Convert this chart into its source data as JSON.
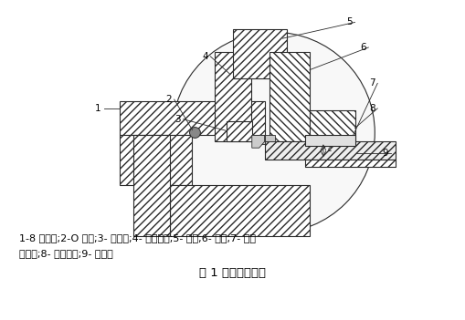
{
  "title": "图 1 辊箱密封结构",
  "caption_line1": "1-8 字面板;2-O 型圈;3- 密封板;4- 外抛油环;5- 辊环;6- 锥套;7- 双唇",
  "caption_line2": "密封圈;8- 内抛油环;9- 轧辊轴",
  "line_color": "#2a2a2a",
  "hatch_color": "#444444"
}
